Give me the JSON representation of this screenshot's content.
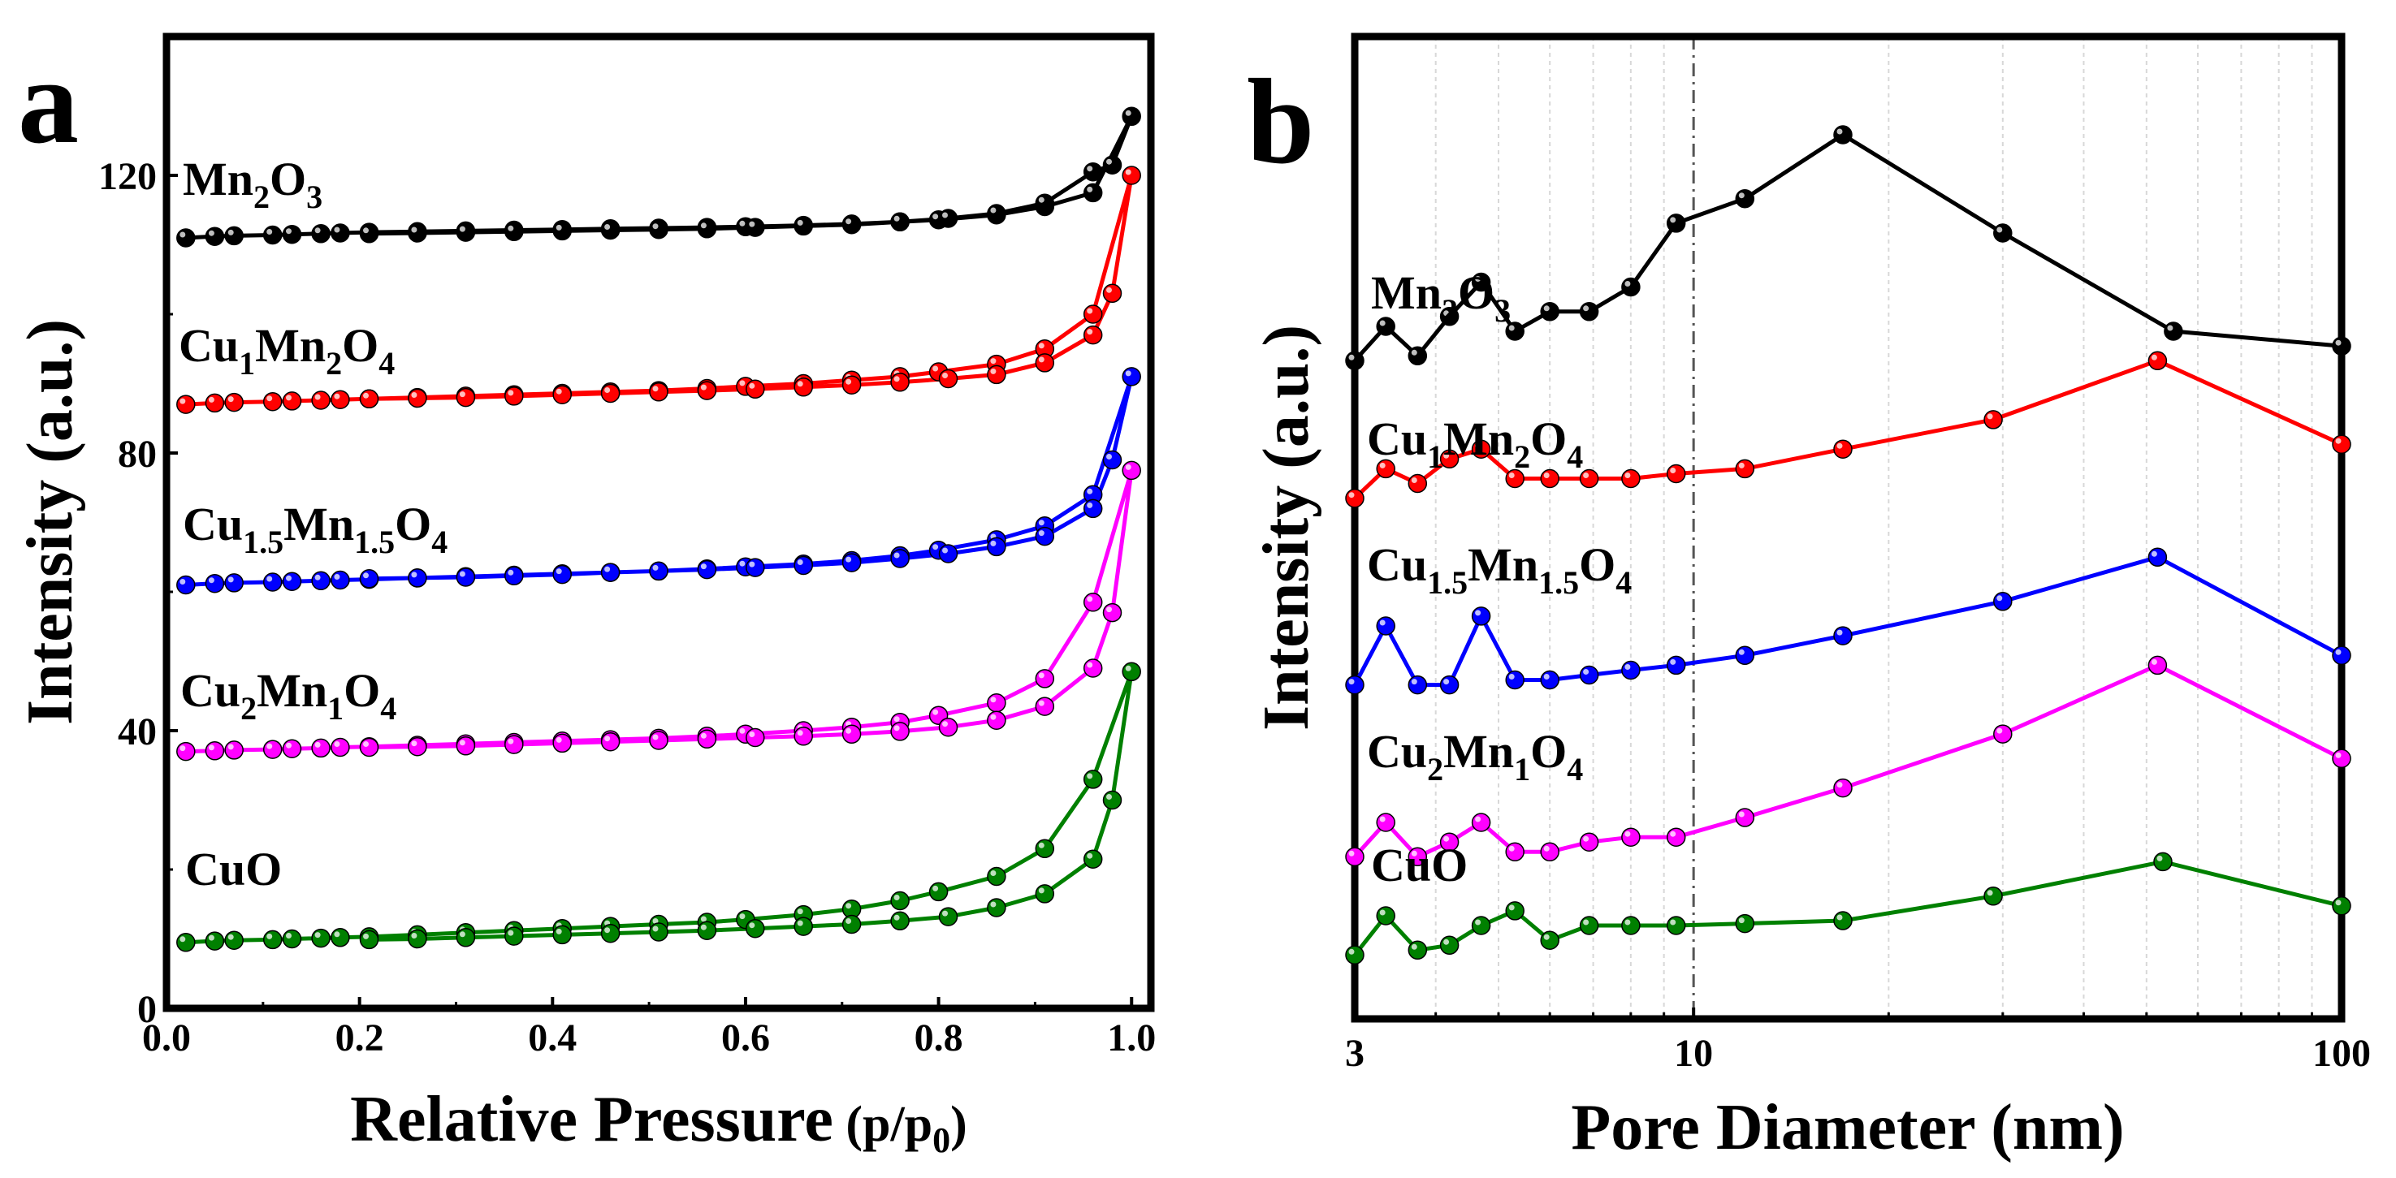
{
  "chart_data": [
    {
      "type": "line",
      "panel_label": "a",
      "title": "",
      "xlabel": "Relative Pressure",
      "xlabel_unit": {
        "open": " (p/p",
        "sub": "0",
        "close": ")"
      },
      "ylabel": "Intensity (a.u.)",
      "xlim": [
        0.0,
        1.02
      ],
      "ylim": [
        0,
        140
      ],
      "xticks": [
        "0.0",
        "0.2",
        "0.4",
        "0.6",
        "0.8",
        "1.0"
      ],
      "yticks": [
        "0",
        "40",
        "80",
        "120"
      ],
      "grid": false,
      "series": [
        {
          "name": "Mn2O3",
          "label_parts": [
            {
              "t": "Mn"
            },
            {
              "t": "2",
              "sub": true
            },
            {
              "t": "O"
            },
            {
              "t": "3",
              "sub": true
            }
          ],
          "color": "#000000",
          "x": [
            0.02,
            0.05,
            0.07,
            0.11,
            0.13,
            0.16,
            0.18,
            0.21,
            0.26,
            0.31,
            0.36,
            0.41,
            0.46,
            0.51,
            0.56,
            0.6,
            0.66,
            0.71,
            0.76,
            0.8,
            0.86,
            0.91,
            0.96,
            1.0,
            0.98,
            0.96,
            0.91,
            0.86,
            0.81,
            0.76,
            0.71,
            0.66,
            0.61,
            0.56,
            0.51,
            0.46,
            0.41,
            0.36,
            0.31,
            0.26,
            0.21
          ],
          "y": [
            111.0,
            111.2,
            111.3,
            111.4,
            111.5,
            111.6,
            111.7,
            111.8,
            111.9,
            112.0,
            112.1,
            112.2,
            112.3,
            112.4,
            112.5,
            112.6,
            112.8,
            113.0,
            113.3,
            113.6,
            114.3,
            115.5,
            117.5,
            128.5,
            121.5,
            120.5,
            116.0,
            114.5,
            113.8,
            113.3,
            112.9,
            112.7,
            112.5,
            112.3,
            112.2,
            112.1,
            112.0,
            111.9,
            111.8,
            111.7,
            111.6
          ]
        },
        {
          "name": "Cu1Mn2O4",
          "label_parts": [
            {
              "t": "Cu"
            },
            {
              "t": "1",
              "sub": true
            },
            {
              "t": "Mn"
            },
            {
              "t": "2",
              "sub": true
            },
            {
              "t": "O"
            },
            {
              "t": "4",
              "sub": true
            }
          ],
          "color": "#ff0000",
          "x": [
            0.02,
            0.05,
            0.07,
            0.11,
            0.13,
            0.16,
            0.18,
            0.21,
            0.26,
            0.31,
            0.36,
            0.41,
            0.46,
            0.51,
            0.56,
            0.6,
            0.66,
            0.71,
            0.76,
            0.8,
            0.86,
            0.91,
            0.96,
            1.0,
            0.98,
            0.96,
            0.91,
            0.86,
            0.81,
            0.76,
            0.71,
            0.66,
            0.61,
            0.56,
            0.51,
            0.46,
            0.41,
            0.36,
            0.31,
            0.26,
            0.21
          ],
          "y": [
            87.0,
            87.2,
            87.3,
            87.4,
            87.5,
            87.6,
            87.7,
            87.8,
            88.0,
            88.2,
            88.4,
            88.6,
            88.8,
            89.0,
            89.3,
            89.6,
            90.0,
            90.5,
            91.0,
            91.7,
            92.8,
            95.0,
            100.0,
            120.0,
            103.0,
            97.0,
            93.0,
            91.3,
            90.7,
            90.2,
            89.8,
            89.5,
            89.2,
            89.0,
            88.8,
            88.6,
            88.4,
            88.2,
            88.0,
            87.9,
            87.8
          ]
        },
        {
          "name": "Cu1.5Mn1.5O4",
          "label_parts": [
            {
              "t": "Cu"
            },
            {
              "t": "1.5",
              "sub": true
            },
            {
              "t": "Mn"
            },
            {
              "t": "1.5",
              "sub": true
            },
            {
              "t": "O"
            },
            {
              "t": "4",
              "sub": true
            }
          ],
          "color": "#0000ff",
          "x": [
            0.02,
            0.05,
            0.07,
            0.11,
            0.13,
            0.16,
            0.18,
            0.21,
            0.26,
            0.31,
            0.36,
            0.41,
            0.46,
            0.51,
            0.56,
            0.6,
            0.66,
            0.71,
            0.76,
            0.8,
            0.86,
            0.91,
            0.96,
            1.0,
            0.98,
            0.96,
            0.91,
            0.86,
            0.81,
            0.76,
            0.71,
            0.66,
            0.61,
            0.56,
            0.51,
            0.46,
            0.41,
            0.36,
            0.31,
            0.26,
            0.21
          ],
          "y": [
            61.0,
            61.2,
            61.3,
            61.4,
            61.5,
            61.6,
            61.7,
            61.8,
            62.0,
            62.2,
            62.4,
            62.6,
            62.8,
            63.0,
            63.3,
            63.6,
            64.0,
            64.5,
            65.2,
            66.0,
            67.5,
            69.5,
            74.0,
            91.0,
            79.0,
            72.0,
            68.0,
            66.5,
            65.5,
            64.8,
            64.2,
            63.8,
            63.5,
            63.2,
            63.0,
            62.8,
            62.5,
            62.3,
            62.1,
            62.0,
            61.9
          ]
        },
        {
          "name": "Cu2Mn1O4",
          "label_parts": [
            {
              "t": "Cu"
            },
            {
              "t": "2",
              "sub": true
            },
            {
              "t": "Mn"
            },
            {
              "t": "1",
              "sub": true
            },
            {
              "t": "O"
            },
            {
              "t": "4",
              "sub": true
            }
          ],
          "color": "#ff00ff",
          "x": [
            0.02,
            0.05,
            0.07,
            0.11,
            0.13,
            0.16,
            0.18,
            0.21,
            0.26,
            0.31,
            0.36,
            0.41,
            0.46,
            0.51,
            0.56,
            0.6,
            0.66,
            0.71,
            0.76,
            0.8,
            0.86,
            0.91,
            0.96,
            1.0,
            0.98,
            0.96,
            0.91,
            0.86,
            0.81,
            0.76,
            0.71,
            0.66,
            0.61,
            0.56,
            0.51,
            0.46,
            0.41,
            0.36,
            0.31,
            0.26,
            0.21
          ],
          "y": [
            37.0,
            37.1,
            37.2,
            37.3,
            37.4,
            37.5,
            37.6,
            37.7,
            37.9,
            38.1,
            38.3,
            38.5,
            38.7,
            38.9,
            39.2,
            39.5,
            40.0,
            40.5,
            41.2,
            42.2,
            44.0,
            47.5,
            58.5,
            77.5,
            57.0,
            49.0,
            43.5,
            41.5,
            40.5,
            39.9,
            39.5,
            39.2,
            39.0,
            38.8,
            38.6,
            38.4,
            38.2,
            38.0,
            37.8,
            37.7,
            37.6
          ]
        },
        {
          "name": "CuO",
          "label_parts": [
            {
              "t": "CuO"
            }
          ],
          "color": "#008000",
          "x": [
            0.02,
            0.05,
            0.07,
            0.11,
            0.13,
            0.16,
            0.18,
            0.21,
            0.26,
            0.31,
            0.36,
            0.41,
            0.46,
            0.51,
            0.56,
            0.6,
            0.66,
            0.71,
            0.76,
            0.8,
            0.86,
            0.91,
            0.96,
            1.0,
            0.98,
            0.96,
            0.91,
            0.86,
            0.81,
            0.76,
            0.71,
            0.66,
            0.61,
            0.56,
            0.51,
            0.46,
            0.41,
            0.36,
            0.31,
            0.26,
            0.21
          ],
          "y": [
            9.5,
            9.7,
            9.8,
            9.9,
            10.0,
            10.1,
            10.2,
            10.3,
            10.6,
            10.9,
            11.2,
            11.5,
            11.8,
            12.1,
            12.4,
            12.8,
            13.5,
            14.3,
            15.5,
            16.8,
            19.0,
            23.0,
            33.0,
            48.5,
            30.0,
            21.5,
            16.5,
            14.5,
            13.2,
            12.6,
            12.1,
            11.8,
            11.5,
            11.2,
            11.0,
            10.8,
            10.6,
            10.4,
            10.2,
            10.0,
            9.9
          ]
        }
      ]
    },
    {
      "type": "line",
      "panel_label": "b",
      "title": "",
      "xlabel": "Pore Diameter (nm)",
      "ylabel": "Intensity (a.u.)",
      "xscale": "log",
      "xlim": [
        3,
        100
      ],
      "ylim": [
        0,
        10
      ],
      "xticks": [
        "3",
        "10",
        "100"
      ],
      "yticks": [],
      "reference_line_x": 10,
      "grid": "vertical minor log gridlines",
      "series": [
        {
          "name": "Mn2O3",
          "label_parts": [
            {
              "t": "Mn"
            },
            {
              "t": "2",
              "sub": true
            },
            {
              "t": "O"
            },
            {
              "t": "3",
              "sub": true
            }
          ],
          "color": "#000000",
          "x": [
            3.0,
            3.35,
            3.75,
            4.2,
            4.7,
            5.3,
            6.0,
            6.9,
            8.0,
            9.4,
            12.0,
            17.0,
            30.0,
            55.0,
            100.0
          ],
          "y": [
            6.7,
            7.05,
            6.75,
            7.15,
            7.5,
            7.0,
            7.2,
            7.2,
            7.45,
            8.1,
            8.35,
            9.0,
            8.0,
            7.0,
            6.85
          ]
        },
        {
          "name": "Cu1Mn2O4",
          "label_parts": [
            {
              "t": "Cu"
            },
            {
              "t": "1",
              "sub": true
            },
            {
              "t": "Mn"
            },
            {
              "t": "2",
              "sub": true
            },
            {
              "t": "O"
            },
            {
              "t": "4",
              "sub": true
            }
          ],
          "color": "#ff0000",
          "x": [
            3.0,
            3.35,
            3.75,
            4.2,
            4.7,
            5.3,
            6.0,
            6.9,
            8.0,
            9.4,
            12.0,
            17.0,
            29.0,
            52.0,
            100.0
          ],
          "y": [
            5.3,
            5.6,
            5.45,
            5.7,
            5.8,
            5.5,
            5.5,
            5.5,
            5.5,
            5.55,
            5.6,
            5.8,
            6.1,
            6.7,
            5.85
          ]
        },
        {
          "name": "Cu1.5Mn1.5O4",
          "label_parts": [
            {
              "t": "Cu"
            },
            {
              "t": "1.5",
              "sub": true
            },
            {
              "t": "Mn"
            },
            {
              "t": "1.5",
              "sub": true
            },
            {
              "t": "O"
            },
            {
              "t": "4",
              "sub": true
            }
          ],
          "color": "#0000ff",
          "x": [
            3.0,
            3.35,
            3.75,
            4.2,
            4.7,
            5.3,
            6.0,
            6.9,
            8.0,
            9.4,
            12.0,
            17.0,
            30.0,
            52.0,
            100.0
          ],
          "y": [
            3.4,
            4.0,
            3.4,
            3.4,
            4.1,
            3.45,
            3.45,
            3.5,
            3.55,
            3.6,
            3.7,
            3.9,
            4.25,
            4.7,
            3.7
          ]
        },
        {
          "name": "Cu2Mn1O4",
          "label_parts": [
            {
              "t": "Cu"
            },
            {
              "t": "2",
              "sub": true
            },
            {
              "t": "Mn"
            },
            {
              "t": "1",
              "sub": true
            },
            {
              "t": "O"
            },
            {
              "t": "4",
              "sub": true
            }
          ],
          "color": "#ff00ff",
          "x": [
            3.0,
            3.35,
            3.75,
            4.2,
            4.7,
            5.3,
            6.0,
            6.9,
            8.0,
            9.4,
            12.0,
            17.0,
            30.0,
            52.0,
            100.0
          ],
          "y": [
            1.65,
            2.0,
            1.65,
            1.8,
            2.0,
            1.7,
            1.7,
            1.8,
            1.85,
            1.85,
            2.05,
            2.35,
            2.9,
            3.6,
            2.65
          ]
        },
        {
          "name": "CuO",
          "label_parts": [
            {
              "t": "CuO"
            }
          ],
          "color": "#008000",
          "x": [
            3.0,
            3.35,
            3.75,
            4.2,
            4.7,
            5.3,
            6.0,
            6.9,
            8.0,
            9.4,
            12.0,
            17.0,
            29.0,
            53.0,
            100.0
          ],
          "y": [
            0.65,
            1.05,
            0.7,
            0.75,
            0.95,
            1.1,
            0.8,
            0.95,
            0.95,
            0.95,
            0.97,
            1.0,
            1.25,
            1.6,
            1.15
          ]
        }
      ]
    }
  ]
}
